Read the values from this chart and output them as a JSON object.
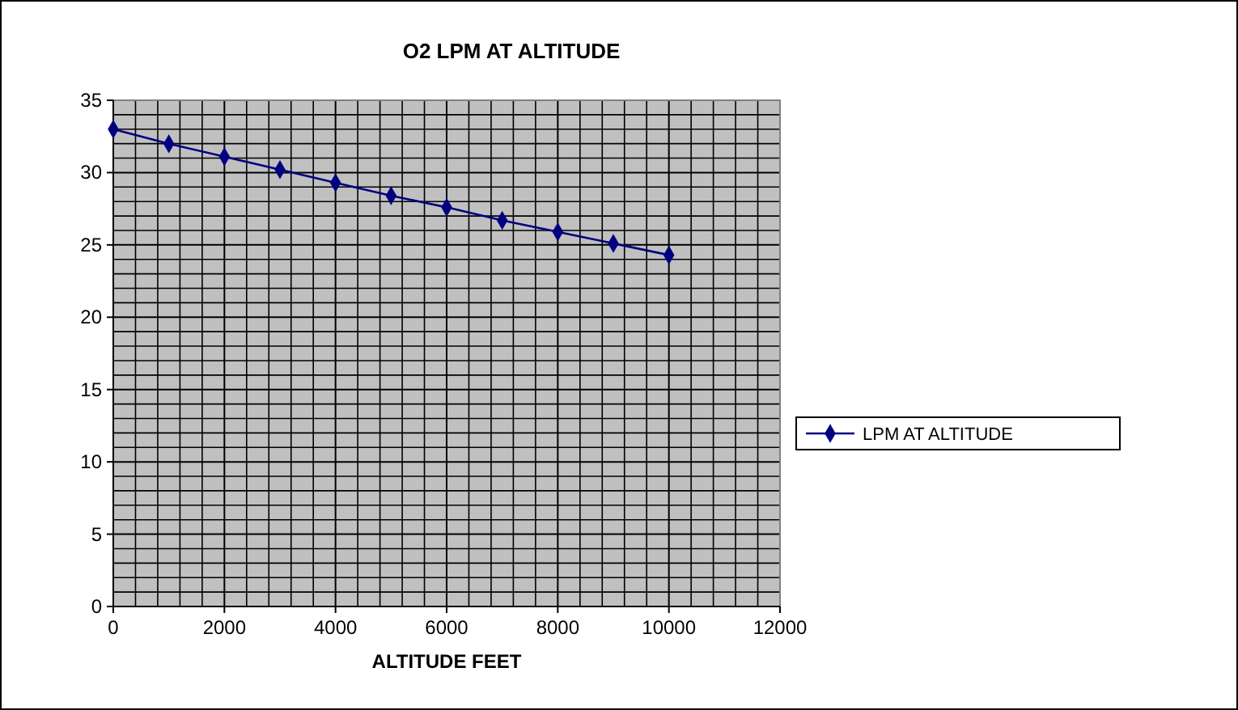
{
  "chart_data": {
    "type": "line",
    "title": "O2 LPM AT ALTITUDE",
    "xlabel": "ALTITUDE FEET",
    "x": [
      0,
      1000,
      2000,
      3000,
      4000,
      5000,
      6000,
      7000,
      8000,
      9000,
      10000
    ],
    "series": [
      {
        "name": "LPM AT ALTITUDE",
        "color": "#000080",
        "values": [
          33,
          32,
          31.1,
          30.2,
          29.3,
          28.4,
          27.6,
          26.7,
          25.9,
          25.1,
          24.3
        ]
      }
    ],
    "xlim": [
      0,
      12000
    ],
    "xticks": [
      0,
      {
        "value": 400,
        "label": null
      },
      {
        "value": 800,
        "label": null
      },
      {
        "value": 1200,
        "label": null
      },
      {
        "value": 1600,
        "label": null
      },
      2000,
      {
        "value": 2400,
        "label": null
      },
      {
        "value": 2800,
        "label": null
      },
      {
        "value": 3200,
        "label": null
      },
      {
        "value": 3600,
        "label": null
      },
      4000,
      {
        "value": 4400,
        "label": null
      },
      {
        "value": 4800,
        "label": null
      },
      {
        "value": 5200,
        "label": null
      },
      {
        "value": 5600,
        "label": null
      },
      6000,
      {
        "value": 6400,
        "label": null
      },
      {
        "value": 6800,
        "label": null
      },
      {
        "value": 7200,
        "label": null
      },
      {
        "value": 7600,
        "label": null
      },
      8000,
      {
        "value": 8400,
        "label": null
      },
      {
        "value": 8800,
        "label": null
      },
      {
        "value": 9200,
        "label": null
      },
      {
        "value": 9600,
        "label": null
      },
      10000,
      {
        "value": 10400,
        "label": null
      },
      {
        "value": 10800,
        "label": null
      },
      {
        "value": 11200,
        "label": null
      },
      {
        "value": 11600,
        "label": null
      },
      12000
    ],
    "ylim": [
      0,
      35
    ],
    "yticks": [
      0,
      {
        "value": 1,
        "label": null
      },
      {
        "value": 2,
        "label": null
      },
      {
        "value": 3,
        "label": null
      },
      {
        "value": 4,
        "label": null
      },
      5,
      {
        "value": 6,
        "label": null
      },
      {
        "value": 7,
        "label": null
      },
      {
        "value": 8,
        "label": null
      },
      {
        "value": 9,
        "label": null
      },
      10,
      {
        "value": 11,
        "label": null
      },
      {
        "value": 12,
        "label": null
      },
      {
        "value": 13,
        "label": null
      },
      {
        "value": 14,
        "label": null
      },
      15,
      {
        "value": 16,
        "label": null
      },
      {
        "value": 17,
        "label": null
      },
      {
        "value": 18,
        "label": null
      },
      {
        "value": 19,
        "label": null
      },
      20,
      {
        "value": 21,
        "label": null
      },
      {
        "value": 22,
        "label": null
      },
      {
        "value": 23,
        "label": null
      },
      {
        "value": 24,
        "label": null
      },
      25,
      {
        "value": 26,
        "label": null
      },
      {
        "value": 27,
        "label": null
      },
      {
        "value": 28,
        "label": null
      },
      {
        "value": 29,
        "label": null
      },
      30,
      {
        "value": 31,
        "label": null
      },
      {
        "value": 32,
        "label": null
      },
      {
        "value": 33,
        "label": null
      },
      {
        "value": 34,
        "label": null
      },
      35
    ],
    "grid": true,
    "legend": "right",
    "marker": "diamond",
    "line_style": "solid"
  }
}
